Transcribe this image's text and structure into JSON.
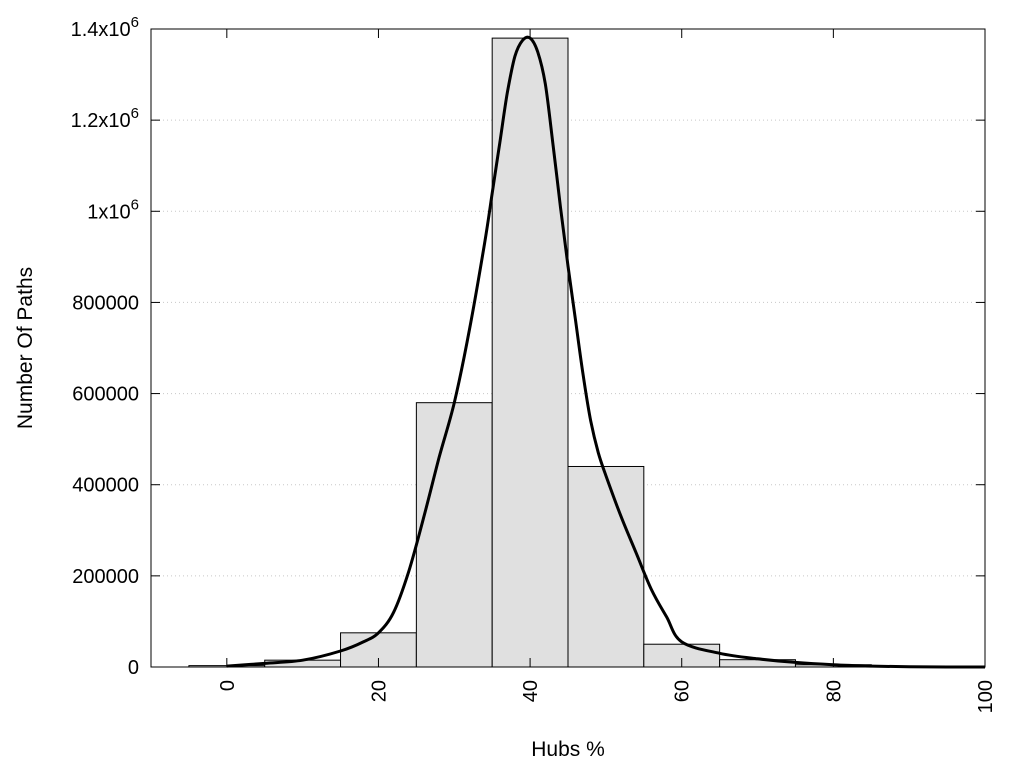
{
  "chart_data": {
    "type": "bar",
    "title": "",
    "xlabel": "Hubs %",
    "ylabel": "Number Of Paths",
    "xlim": [
      -10,
      100
    ],
    "ylim": [
      0,
      1400000
    ],
    "grid": "horizontal dotted",
    "bar_color": "#e0e0e0",
    "bar_edge_color": "#000000",
    "curve_color": "#000000",
    "x_ticks": [
      0,
      20,
      40,
      60,
      80,
      100
    ],
    "x_tick_labels": [
      "0",
      "20",
      "40",
      "60",
      "80",
      "100"
    ],
    "y_ticks": [
      {
        "value": 0,
        "base": "0",
        "exp": ""
      },
      {
        "value": 200000,
        "base": "200000",
        "exp": ""
      },
      {
        "value": 400000,
        "base": "400000",
        "exp": ""
      },
      {
        "value": 600000,
        "base": "600000",
        "exp": ""
      },
      {
        "value": 800000,
        "base": "800000",
        "exp": ""
      },
      {
        "value": 1000000,
        "base": "1x10",
        "exp": "6"
      },
      {
        "value": 1200000,
        "base": "1.2x10",
        "exp": "6"
      },
      {
        "value": 1400000,
        "base": "1.4x10",
        "exp": "6"
      }
    ],
    "bins": [
      {
        "x": 0,
        "value": 3000
      },
      {
        "x": 10,
        "value": 15000
      },
      {
        "x": 20,
        "value": 75000
      },
      {
        "x": 30,
        "value": 580000
      },
      {
        "x": 40,
        "value": 1380000
      },
      {
        "x": 50,
        "value": 440000
      },
      {
        "x": 60,
        "value": 50000
      },
      {
        "x": 70,
        "value": 16000
      },
      {
        "x": 80,
        "value": 5000
      },
      {
        "x": 90,
        "value": 2000
      },
      {
        "x": 100,
        "value": 1000
      }
    ],
    "bin_width": 10,
    "curve": {
      "name": "",
      "x": [
        0,
        5,
        10,
        15,
        18,
        20,
        22,
        24,
        26,
        28,
        30,
        32,
        34,
        35,
        36,
        37,
        38,
        39,
        40,
        41,
        42,
        43,
        44,
        45,
        46,
        47,
        48,
        49,
        50,
        52,
        54,
        56,
        58,
        60,
        65,
        70,
        75,
        80,
        85,
        90,
        95,
        100
      ],
      "y": [
        2000,
        8000,
        15000,
        35000,
        55000,
        75000,
        120000,
        210000,
        330000,
        460000,
        580000,
        740000,
        930000,
        1040000,
        1150000,
        1260000,
        1340000,
        1375000,
        1380000,
        1350000,
        1280000,
        1150000,
        1010000,
        880000,
        760000,
        640000,
        540000,
        470000,
        420000,
        330000,
        250000,
        170000,
        110000,
        55000,
        30000,
        18000,
        10000,
        5000,
        2000,
        500,
        0,
        0
      ]
    }
  }
}
